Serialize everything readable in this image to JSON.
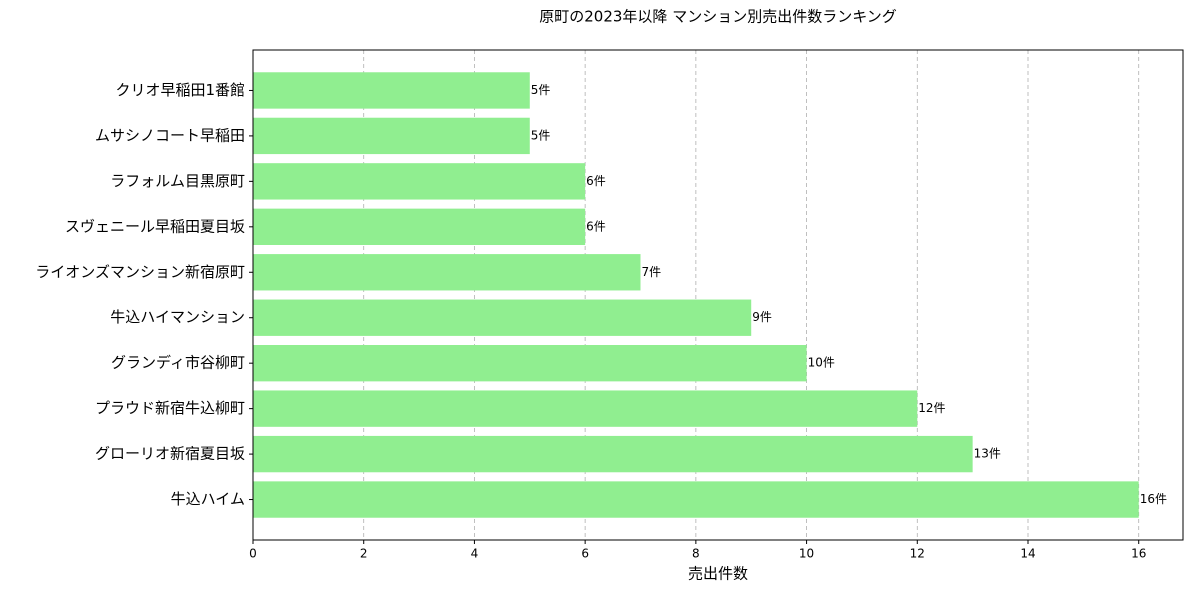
{
  "chart_data": {
    "type": "barh",
    "title": "原町の2023年以降 マンション別売出件数ランキング",
    "xlabel": "売出件数",
    "categories": [
      "クリオ早稲田1番館",
      "ムサシノコート早稲田",
      "ラフォルム目黒原町",
      "スヴェニール早稲田夏目坂",
      "ライオンズマンション新宿原町",
      "牛込ハイマンション",
      "グランディ市谷柳町",
      "プラウド新宿牛込柳町",
      "グローリオ新宿夏目坂",
      "牛込ハイム"
    ],
    "values": [
      5,
      5,
      6,
      6,
      7,
      9,
      10,
      12,
      13,
      16
    ],
    "value_labels": [
      "5件",
      "5件",
      "6件",
      "6件",
      "7件",
      "9件",
      "10件",
      "12件",
      "13件",
      "16件"
    ],
    "color": "#90ee90",
    "xlim": [
      0,
      16.8
    ],
    "xticks": [
      0,
      2,
      4,
      6,
      8,
      10,
      12,
      14,
      16
    ],
    "grid": true
  }
}
